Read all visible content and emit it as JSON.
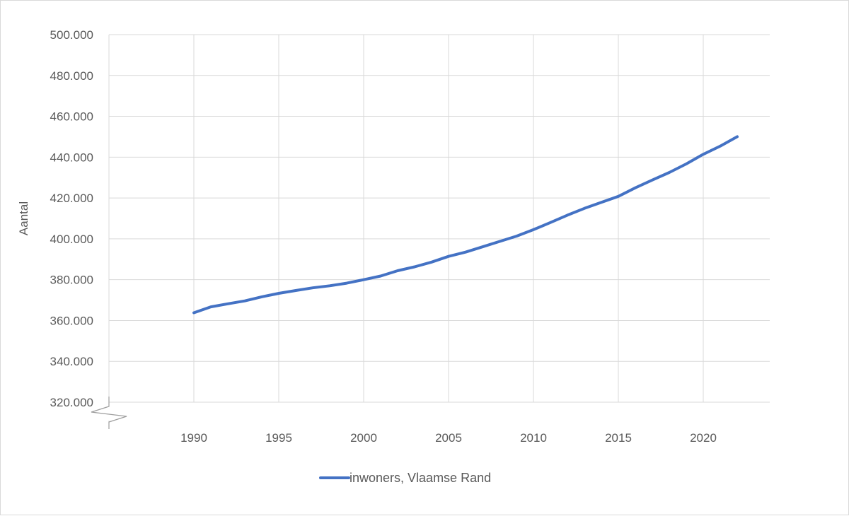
{
  "chart_data": {
    "type": "line",
    "title": "",
    "xlabel": "",
    "ylabel": "Aantal",
    "ylim": [
      320000,
      500000
    ],
    "y_ticks": [
      320000,
      340000,
      360000,
      380000,
      400000,
      420000,
      440000,
      460000,
      480000,
      500000
    ],
    "y_tick_labels": [
      "320.000",
      "340.000",
      "360.000",
      "380.000",
      "400.000",
      "420.000",
      "440.000",
      "460.000",
      "480.000",
      "500.000"
    ],
    "x_ticks": [
      1990,
      1995,
      2000,
      2005,
      2010,
      2015,
      2020
    ],
    "x_tick_labels": [
      "1990",
      "1995",
      "2000",
      "2005",
      "2010",
      "2015",
      "2020"
    ],
    "axis_break": "y",
    "grid": true,
    "legend_position": "bottom",
    "series": [
      {
        "name": "inwoners, Vlaamse Rand",
        "color": "#4472c4",
        "x": [
          1990,
          1991,
          1992,
          1993,
          1994,
          1995,
          1996,
          1997,
          1998,
          1999,
          2000,
          2001,
          2002,
          2003,
          2004,
          2005,
          2006,
          2007,
          2008,
          2009,
          2010,
          2011,
          2012,
          2013,
          2014,
          2015,
          2016,
          2017,
          2018,
          2019,
          2020,
          2021,
          2022
        ],
        "values": [
          363800,
          366700,
          368200,
          369600,
          371600,
          373300,
          374700,
          376000,
          377000,
          378300,
          380000,
          381800,
          384400,
          386300,
          388600,
          391400,
          393500,
          396100,
          398700,
          401300,
          404500,
          408000,
          411600,
          414900,
          417900,
          420800,
          425000,
          428800,
          432500,
          436700,
          441400,
          445400,
          450000
        ]
      }
    ]
  }
}
